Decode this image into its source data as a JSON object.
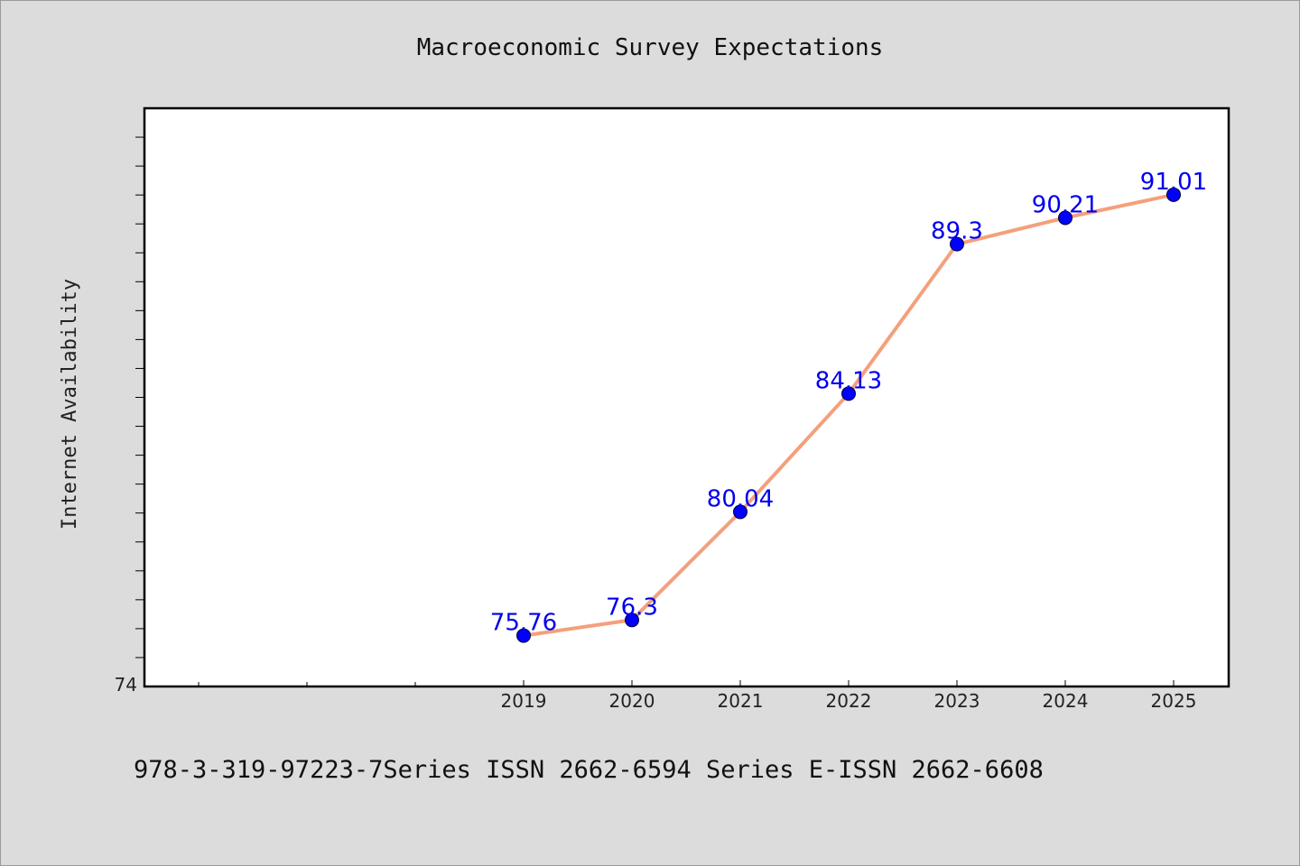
{
  "chart_data": {
    "type": "line",
    "title": "Macroeconomic Survey Expectations",
    "xlabel": "",
    "ylabel": "Internet Availability",
    "categories": [
      "2019",
      "2020",
      "2021",
      "2022",
      "2023",
      "2024",
      "2025"
    ],
    "series": [
      {
        "values": [
          75.76,
          76.3,
          80.04,
          84.13,
          89.3,
          90.21,
          91.01
        ],
        "labels": [
          "75.76",
          "76.3",
          "80.04",
          "84.13",
          "89.3",
          "90.21",
          "91.01"
        ]
      }
    ],
    "ylim": [
      74,
      94
    ],
    "y_tick_labels": [
      "74"
    ],
    "grid": false,
    "legend": "none",
    "line_color": "#f4a07c",
    "marker_color": "#0000ff",
    "label_color": "#0000ee"
  },
  "footer": {
    "text": "978-3-319-97223-7Series ISSN 2662-6594 Series E-ISSN 2662-6608"
  }
}
